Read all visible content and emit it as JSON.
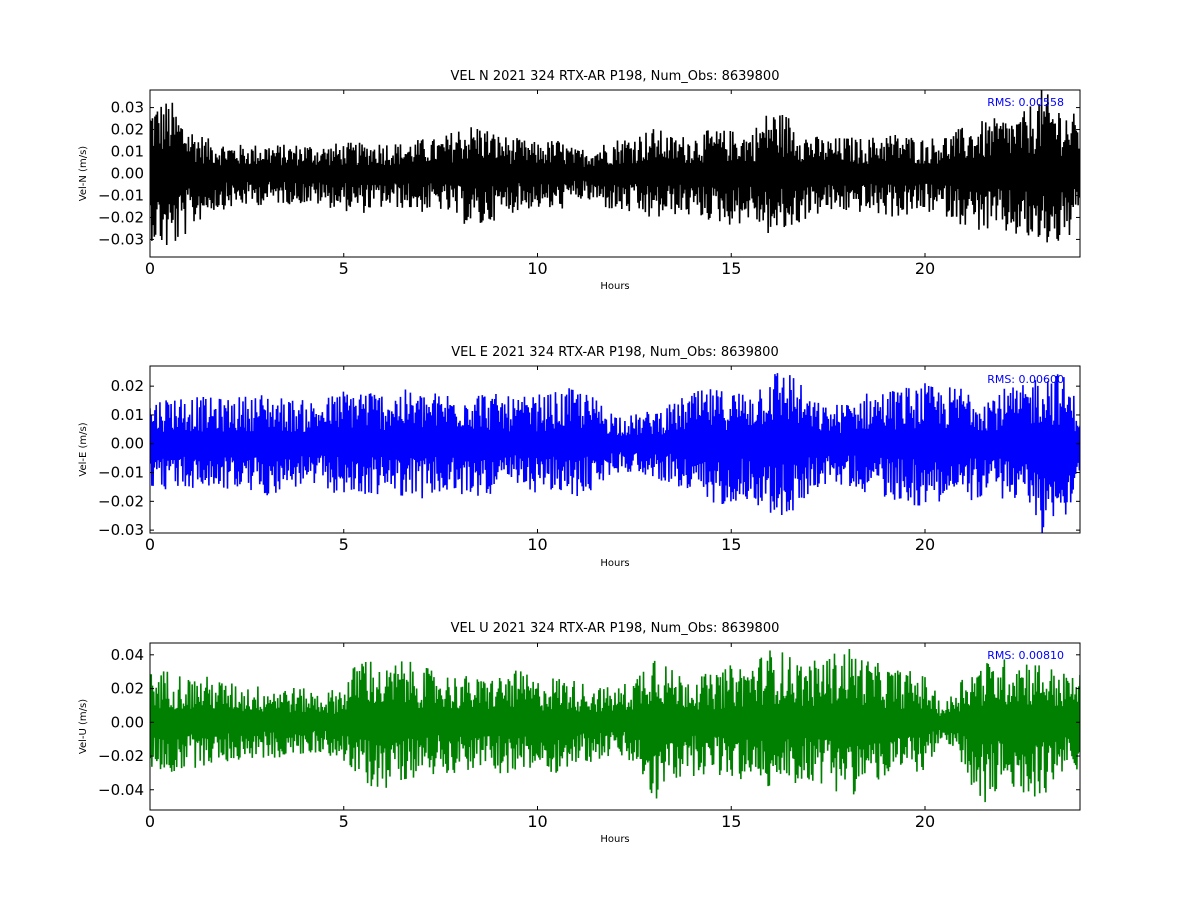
{
  "chart_data": [
    {
      "type": "line",
      "title": "VEL N 2021 324 RTX-AR  P198, Num_Obs: 8639800",
      "xlabel": "Hours",
      "ylabel": "Vel-N (m/s)",
      "xlim": [
        0,
        24
      ],
      "ylim": [
        -0.038,
        0.038
      ],
      "xticks": [
        0,
        5,
        10,
        15,
        20
      ],
      "yticks": [
        -0.03,
        -0.02,
        -0.01,
        0.0,
        0.01,
        0.02,
        0.03
      ],
      "yticklabels": [
        "−0.03",
        "−0.02",
        "−0.01",
        "0.00",
        "0.01",
        "0.02",
        "0.03"
      ],
      "rms_label": "RMS:  0.00558",
      "color": "#000000",
      "rms_color": "#0000ff",
      "grid": false,
      "series": [
        {
          "x": [
            0,
            0.5,
            1,
            1.5,
            2,
            2.5,
            3,
            3.5,
            4,
            4.5,
            5,
            5.5,
            6,
            6.5,
            7,
            7.5,
            8,
            8.5,
            9,
            9.5,
            10,
            10.5,
            11,
            11.5,
            12,
            12.5,
            13,
            13.5,
            14,
            14.5,
            15,
            15.5,
            16,
            16.5,
            17,
            17.5,
            18,
            18.5,
            19,
            19.5,
            20,
            20.5,
            21,
            21.5,
            22,
            22.5,
            23,
            23.5,
            24
          ],
          "y_max": [
            0.033,
            0.034,
            0.022,
            0.016,
            0.014,
            0.013,
            0.014,
            0.013,
            0.014,
            0.013,
            0.014,
            0.014,
            0.015,
            0.014,
            0.016,
            0.016,
            0.022,
            0.023,
            0.018,
            0.016,
            0.014,
            0.016,
            0.011,
            0.013,
            0.016,
            0.018,
            0.021,
            0.017,
            0.018,
            0.02,
            0.02,
            0.019,
            0.03,
            0.027,
            0.018,
            0.016,
            0.017,
            0.016,
            0.019,
            0.018,
            0.016,
            0.018,
            0.021,
            0.024,
            0.026,
            0.027,
            0.038,
            0.032,
            0.025
          ],
          "y_min": [
            -0.03,
            -0.037,
            -0.027,
            -0.018,
            -0.016,
            -0.015,
            -0.014,
            -0.014,
            -0.014,
            -0.015,
            -0.017,
            -0.018,
            -0.016,
            -0.016,
            -0.018,
            -0.017,
            -0.022,
            -0.026,
            -0.02,
            -0.017,
            -0.016,
            -0.018,
            -0.012,
            -0.014,
            -0.018,
            -0.019,
            -0.022,
            -0.019,
            -0.02,
            -0.022,
            -0.024,
            -0.021,
            -0.029,
            -0.027,
            -0.02,
            -0.018,
            -0.018,
            -0.018,
            -0.02,
            -0.02,
            -0.018,
            -0.019,
            -0.024,
            -0.027,
            -0.028,
            -0.03,
            -0.034,
            -0.033,
            -0.026
          ]
        }
      ]
    },
    {
      "type": "line",
      "title": "VEL E 2021 324 RTX-AR  P198, Num_Obs: 8639800",
      "xlabel": "Hours",
      "ylabel": "Vel-E (m/s)",
      "xlim": [
        0,
        24
      ],
      "ylim": [
        -0.031,
        0.027
      ],
      "xticks": [
        0,
        5,
        10,
        15,
        20
      ],
      "yticks": [
        -0.03,
        -0.02,
        -0.01,
        0.0,
        0.01,
        0.02
      ],
      "yticklabels": [
        "−0.03",
        "−0.02",
        "−0.01",
        "0.00",
        "0.01",
        "0.02"
      ],
      "rms_label": "RMS:  0.00600",
      "color": "#0000ff",
      "rms_color": "#0000ff",
      "grid": false,
      "series": [
        {
          "x": [
            0,
            0.5,
            1,
            1.5,
            2,
            2.5,
            3,
            3.5,
            4,
            4.5,
            5,
            5.5,
            6,
            6.5,
            7,
            7.5,
            8,
            8.5,
            9,
            9.5,
            10,
            10.5,
            11,
            11.5,
            12,
            12.5,
            13,
            13.5,
            14,
            14.5,
            15,
            15.5,
            16,
            16.5,
            17,
            17.5,
            18,
            18.5,
            19,
            19.5,
            20,
            20.5,
            21,
            21.5,
            22,
            22.5,
            23,
            23.5,
            24
          ],
          "y_max": [
            0.015,
            0.017,
            0.017,
            0.016,
            0.016,
            0.017,
            0.018,
            0.016,
            0.015,
            0.016,
            0.019,
            0.02,
            0.018,
            0.019,
            0.018,
            0.018,
            0.019,
            0.019,
            0.017,
            0.016,
            0.017,
            0.018,
            0.02,
            0.016,
            0.011,
            0.01,
            0.012,
            0.014,
            0.018,
            0.019,
            0.019,
            0.019,
            0.026,
            0.027,
            0.016,
            0.013,
            0.015,
            0.018,
            0.019,
            0.02,
            0.021,
            0.019,
            0.021,
            0.018,
            0.019,
            0.02,
            0.026,
            0.025,
            0.014
          ],
          "y_min": [
            -0.015,
            -0.016,
            -0.016,
            -0.016,
            -0.016,
            -0.017,
            -0.018,
            -0.016,
            -0.015,
            -0.016,
            -0.018,
            -0.019,
            -0.017,
            -0.018,
            -0.019,
            -0.018,
            -0.019,
            -0.018,
            -0.017,
            -0.016,
            -0.017,
            -0.018,
            -0.019,
            -0.016,
            -0.01,
            -0.01,
            -0.012,
            -0.014,
            -0.019,
            -0.022,
            -0.02,
            -0.019,
            -0.025,
            -0.027,
            -0.017,
            -0.014,
            -0.015,
            -0.017,
            -0.019,
            -0.02,
            -0.023,
            -0.019,
            -0.02,
            -0.019,
            -0.019,
            -0.02,
            -0.031,
            -0.028,
            -0.015
          ]
        }
      ]
    },
    {
      "type": "line",
      "title": "VEL U 2021 324 RTX-AR  P198, Num_Obs: 8639800",
      "xlabel": "Hours",
      "ylabel": "Vel-U (m/s)",
      "xlim": [
        0,
        24
      ],
      "ylim": [
        -0.052,
        0.047
      ],
      "xticks": [
        0,
        5,
        10,
        15,
        20
      ],
      "yticks": [
        -0.04,
        -0.02,
        0.0,
        0.02,
        0.04
      ],
      "yticklabels": [
        "−0.04",
        "−0.02",
        "0.00",
        "0.02",
        "0.04"
      ],
      "rms_label": "RMS:  0.00810",
      "color": "#008000",
      "rms_color": "#0000ff",
      "grid": false,
      "series": [
        {
          "x": [
            0,
            0.5,
            1,
            1.5,
            2,
            2.5,
            3,
            3.5,
            4,
            4.5,
            5,
            5.5,
            6,
            6.5,
            7,
            7.5,
            8,
            8.5,
            9,
            9.5,
            10,
            10.5,
            11,
            11.5,
            12,
            12.5,
            13,
            13.5,
            14,
            14.5,
            15,
            15.5,
            16,
            16.5,
            17,
            17.5,
            18,
            18.5,
            19,
            19.5,
            20,
            20.5,
            21,
            21.5,
            22,
            22.5,
            23,
            23.5,
            24
          ],
          "y_max": [
            0.03,
            0.032,
            0.027,
            0.027,
            0.024,
            0.022,
            0.022,
            0.022,
            0.02,
            0.018,
            0.022,
            0.044,
            0.03,
            0.038,
            0.033,
            0.03,
            0.028,
            0.026,
            0.028,
            0.031,
            0.025,
            0.028,
            0.025,
            0.022,
            0.02,
            0.027,
            0.046,
            0.03,
            0.03,
            0.028,
            0.034,
            0.036,
            0.044,
            0.04,
            0.035,
            0.04,
            0.046,
            0.038,
            0.033,
            0.031,
            0.028,
            0.01,
            0.03,
            0.036,
            0.038,
            0.04,
            0.036,
            0.03,
            0.028
          ],
          "y_min": [
            -0.028,
            -0.031,
            -0.028,
            -0.025,
            -0.024,
            -0.022,
            -0.022,
            -0.021,
            -0.02,
            -0.018,
            -0.024,
            -0.038,
            -0.04,
            -0.034,
            -0.032,
            -0.03,
            -0.03,
            -0.028,
            -0.03,
            -0.033,
            -0.028,
            -0.03,
            -0.025,
            -0.023,
            -0.02,
            -0.026,
            -0.049,
            -0.036,
            -0.032,
            -0.03,
            -0.036,
            -0.034,
            -0.04,
            -0.036,
            -0.036,
            -0.038,
            -0.045,
            -0.038,
            -0.034,
            -0.031,
            -0.028,
            -0.012,
            -0.03,
            -0.052,
            -0.04,
            -0.044,
            -0.044,
            -0.034,
            -0.028
          ]
        }
      ]
    }
  ]
}
